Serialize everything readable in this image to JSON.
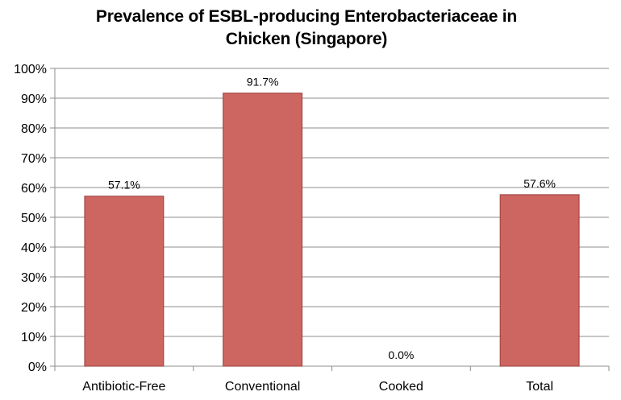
{
  "chart_data": {
    "type": "bar",
    "title_lines": [
      "Prevalence of ESBL-producing Enterobacteriaceae in",
      "Chicken (Singapore)"
    ],
    "categories": [
      "Antibiotic-Free",
      "Conventional",
      "Cooked",
      "Total"
    ],
    "values": [
      57.1,
      91.7,
      0.0,
      57.6
    ],
    "data_labels": [
      "57.1%",
      "91.7%",
      "0.0%",
      "57.6%"
    ],
    "ylim": [
      0,
      100
    ],
    "yticks": [
      "0%",
      "10%",
      "20%",
      "30%",
      "40%",
      "50%",
      "60%",
      "70%",
      "80%",
      "90%",
      "100%"
    ],
    "xlabel": "",
    "ylabel": "",
    "grid": true,
    "legend": "none",
    "bar_color": "#cd6560",
    "bar_edge_color": "#9b3f3b",
    "grid_color": "#8c8c8c",
    "axis_color": "#8c8c8c"
  }
}
